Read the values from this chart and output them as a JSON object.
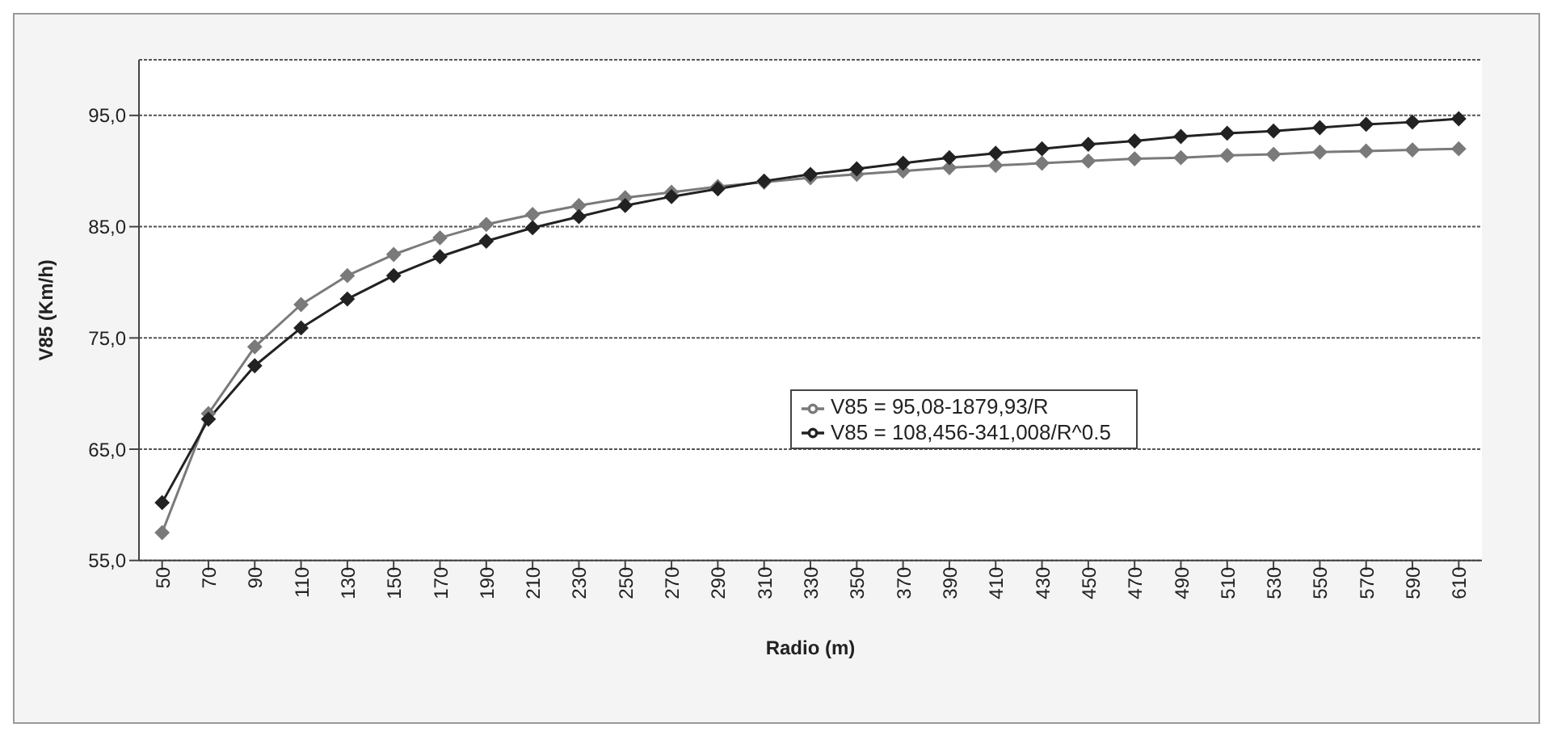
{
  "chart_data": {
    "type": "line",
    "xlabel": "Radio (m)",
    "ylabel": "V85 (Km/h)",
    "categories": [
      "50",
      "70",
      "90",
      "110",
      "130",
      "150",
      "170",
      "190",
      "210",
      "230",
      "250",
      "270",
      "290",
      "310",
      "330",
      "350",
      "370",
      "390",
      "410",
      "430",
      "450",
      "470",
      "490",
      "510",
      "530",
      "550",
      "570",
      "590",
      "610"
    ],
    "series": [
      {
        "name": "V85 = 95,08-1879,93/R",
        "color": "#7a7a7a",
        "values": [
          57.5,
          68.2,
          74.2,
          78.0,
          80.6,
          82.5,
          84.0,
          85.2,
          86.1,
          86.9,
          87.6,
          88.1,
          88.6,
          89.0,
          89.4,
          89.7,
          90.0,
          90.3,
          90.5,
          90.7,
          90.9,
          91.1,
          91.2,
          91.4,
          91.5,
          91.7,
          91.8,
          91.9,
          92.0
        ]
      },
      {
        "name": "V85 = 108,456-341,008/R^0.5",
        "color": "#222222",
        "values": [
          60.2,
          67.7,
          72.5,
          75.9,
          78.5,
          80.6,
          82.3,
          83.7,
          84.9,
          85.9,
          86.9,
          87.7,
          88.4,
          89.1,
          89.7,
          90.2,
          90.7,
          91.2,
          91.6,
          92.0,
          92.4,
          92.7,
          93.1,
          93.4,
          93.6,
          93.9,
          94.2,
          94.4,
          94.7
        ]
      }
    ],
    "ylim": [
      55,
      100
    ],
    "yticks": [
      {
        "value": 55,
        "label": "55,0"
      },
      {
        "value": 65,
        "label": "65,0"
      },
      {
        "value": 75,
        "label": "75,0"
      },
      {
        "value": 85,
        "label": "85,0"
      },
      {
        "value": 95,
        "label": "95,0"
      }
    ],
    "grid": "y",
    "legend": "center",
    "marker": "diamond",
    "line_style": "solid"
  }
}
